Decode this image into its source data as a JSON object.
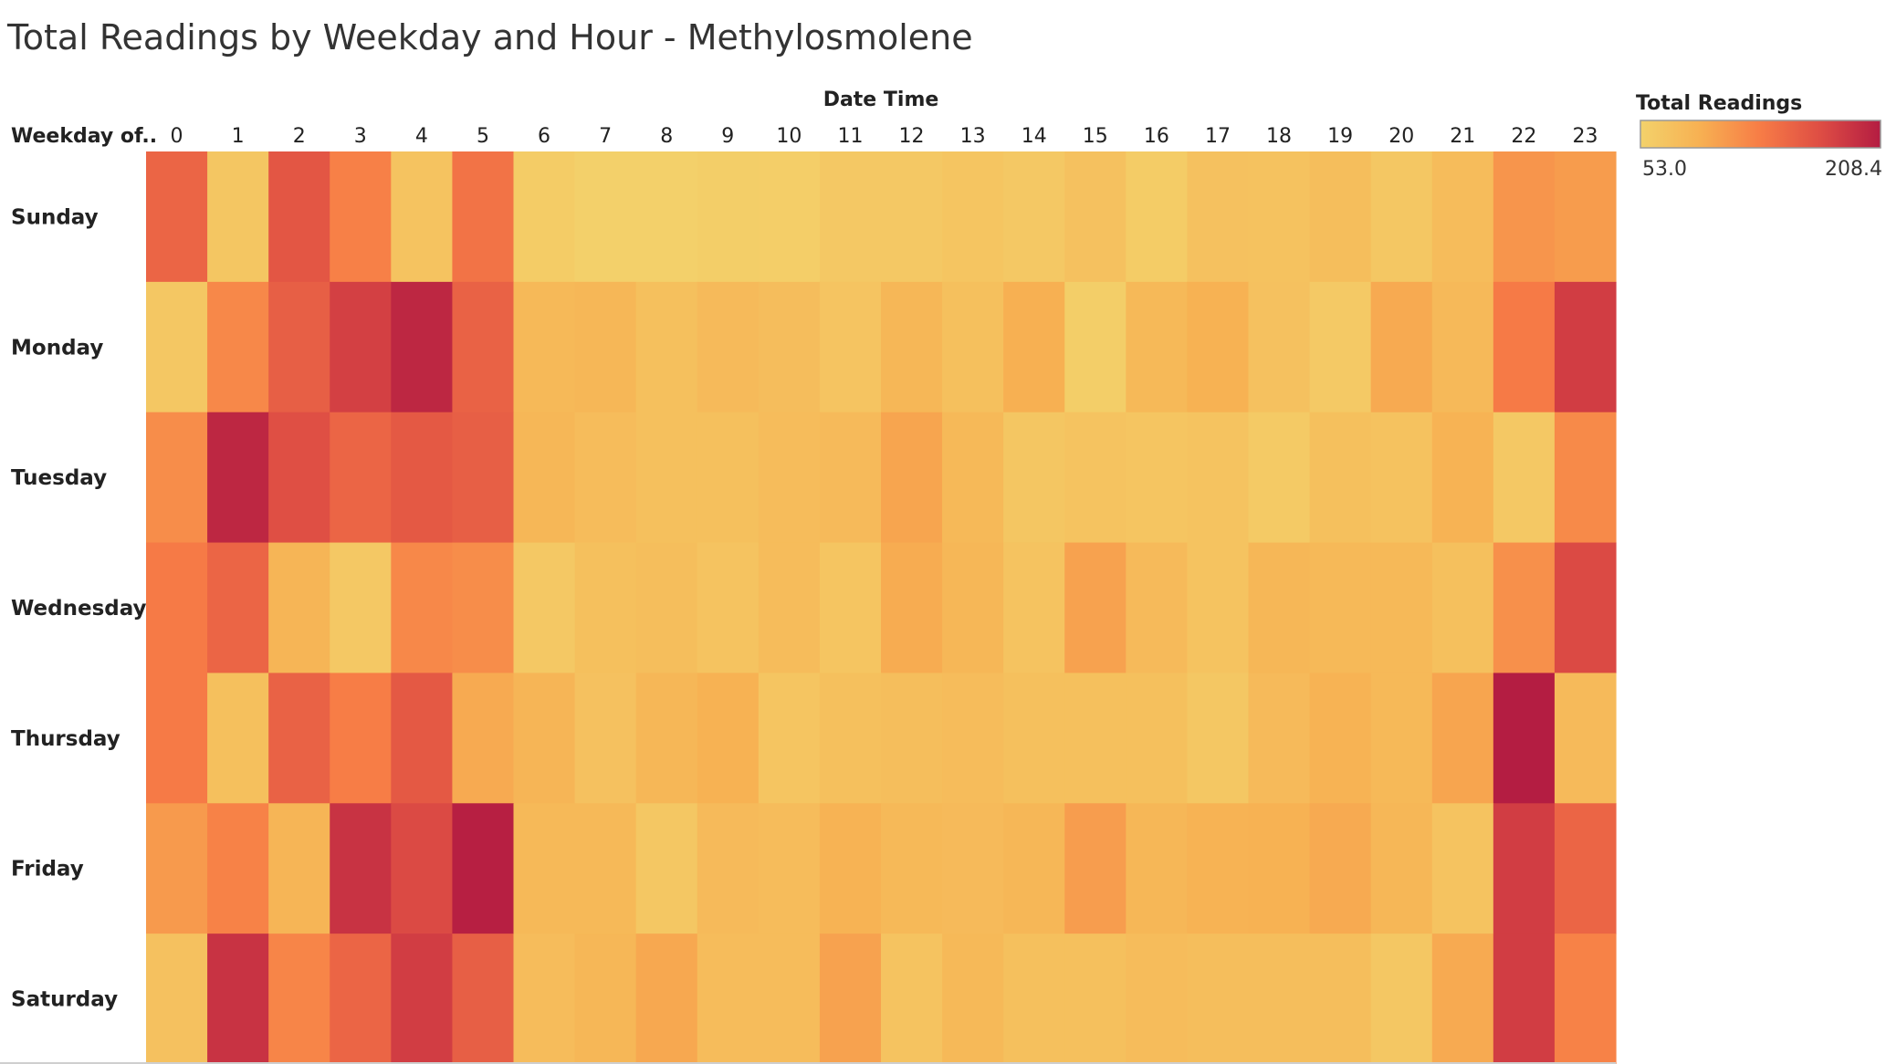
{
  "chart_data": {
    "type": "heatmap",
    "title": "Total Readings by Weekday and Hour - Methylosmolene",
    "x_header": "Date Time",
    "y_header": "Weekday of..",
    "x": [
      "0",
      "1",
      "2",
      "3",
      "4",
      "5",
      "6",
      "7",
      "8",
      "9",
      "10",
      "11",
      "12",
      "13",
      "14",
      "15",
      "16",
      "17",
      "18",
      "19",
      "20",
      "21",
      "22",
      "23"
    ],
    "y": [
      "Sunday",
      "Monday",
      "Tuesday",
      "Wednesday",
      "Thursday",
      "Friday",
      "Saturday"
    ],
    "values": [
      [
        150,
        67,
        162,
        128,
        70,
        138,
        60,
        55,
        55,
        57,
        58,
        64,
        64,
        68,
        64,
        72,
        60,
        72,
        71,
        76,
        66,
        78,
        112,
        107
      ],
      [
        65,
        122,
        155,
        180,
        200,
        152,
        82,
        84,
        74,
        80,
        77,
        69,
        84,
        74,
        92,
        57,
        82,
        90,
        72,
        63,
        96,
        81,
        132,
        182
      ],
      [
        118,
        200,
        168,
        150,
        160,
        155,
        84,
        78,
        74,
        74,
        78,
        80,
        100,
        82,
        67,
        70,
        68,
        70,
        62,
        74,
        71,
        88,
        64,
        120
      ],
      [
        132,
        150,
        86,
        64,
        122,
        118,
        64,
        74,
        76,
        70,
        78,
        68,
        95,
        84,
        70,
        102,
        80,
        70,
        84,
        82,
        82,
        74,
        116,
        172
      ],
      [
        132,
        74,
        152,
        130,
        160,
        96,
        86,
        72,
        84,
        90,
        68,
        74,
        76,
        78,
        74,
        74,
        74,
        66,
        80,
        88,
        82,
        100,
        208,
        80
      ],
      [
        108,
        126,
        86,
        190,
        172,
        206,
        82,
        82,
        66,
        80,
        78,
        88,
        82,
        80,
        84,
        106,
        84,
        88,
        90,
        96,
        84,
        70,
        182,
        150
      ],
      [
        72,
        190,
        124,
        150,
        182,
        155,
        78,
        84,
        98,
        78,
        78,
        102,
        70,
        82,
        74,
        74,
        78,
        76,
        76,
        76,
        66,
        96,
        182,
        126
      ]
    ],
    "color_legend": {
      "title": "Total Readings",
      "min": 53.0,
      "max": 208.4,
      "min_label": "53.0",
      "max_label": "208.4"
    },
    "colors": [
      "#f3d26b",
      "#f7b052",
      "#f77c46",
      "#de4d44",
      "#b41c42"
    ],
    "grid": false
  }
}
